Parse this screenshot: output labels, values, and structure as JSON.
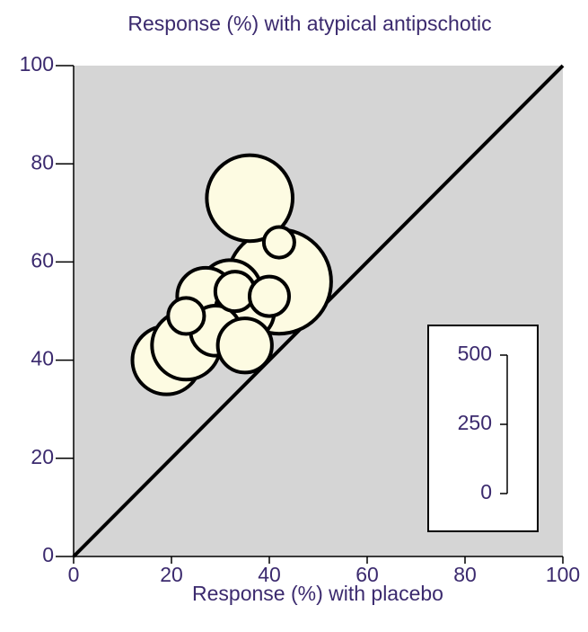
{
  "chart_data": {
    "type": "scatter",
    "title": "Response (%) with atypical antipschotic",
    "x_label": "Response (%) with placebo",
    "x": [
      42,
      36,
      19,
      23,
      32,
      27,
      35,
      29,
      35,
      42,
      33,
      40,
      23
    ],
    "y": [
      56,
      73,
      40,
      43,
      54,
      53,
      50,
      46,
      43,
      64,
      54,
      53,
      49
    ],
    "sizes": [
      500,
      340,
      215,
      215,
      180,
      150,
      160,
      115,
      135,
      43,
      72,
      72,
      60
    ],
    "color": "#fdfbe2",
    "xlim": [
      0,
      100
    ],
    "ylim": [
      0,
      100
    ],
    "xticks": [
      0,
      20,
      40,
      60,
      80,
      100
    ],
    "yticks": [
      0,
      20,
      40,
      60,
      80,
      100
    ],
    "size_legend_ticks": [
      0,
      250,
      500
    ],
    "reference_line": true
  }
}
